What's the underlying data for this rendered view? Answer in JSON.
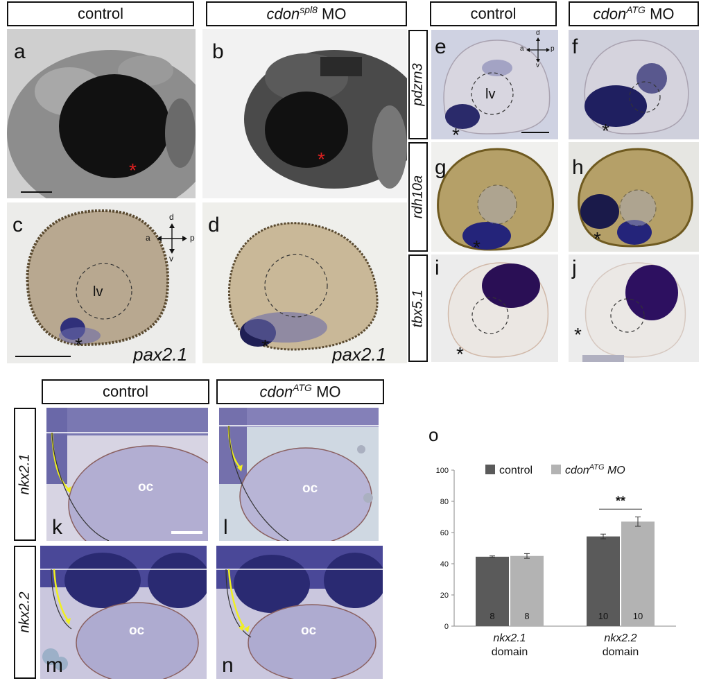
{
  "headers": {
    "top_control": "control",
    "top_mo_gene": "cdon",
    "top_mo_sup": "spl8",
    "top_mo_suffix": "MO",
    "right_control": "control",
    "right_mo_gene": "cdon",
    "right_mo_sup": "ATG",
    "right_mo_suffix": "MO",
    "bottom_control": "control",
    "bottom_mo_gene": "cdon",
    "bottom_mo_sup": "ATG",
    "bottom_mo_suffix": "MO"
  },
  "row_labels": {
    "pdzrn3": "pdzrn3",
    "rdh10a": "rdh10a",
    "tbx5_1": "tbx5.1",
    "nkx2_1": "nkx2.1",
    "nkx2_2": "nkx2.2"
  },
  "panel_letters": [
    "a",
    "b",
    "c",
    "d",
    "e",
    "f",
    "g",
    "h",
    "i",
    "j",
    "k",
    "l",
    "m",
    "n",
    "o"
  ],
  "in_panel_labels": {
    "gene_c": "pax2.1",
    "gene_d": "pax2.1",
    "lens_vesicle": "lv",
    "optic_chiasm": "oc",
    "asterisk": "*"
  },
  "compass": {
    "d": "d",
    "v": "v",
    "a": "a",
    "p": "p"
  },
  "chart_data": {
    "type": "bar",
    "categories": [
      "nkx2.1 domain",
      "nkx2.2 domain"
    ],
    "category_gene": [
      "nkx2.1",
      "nkx2.2"
    ],
    "category_suffix": [
      "domain",
      "domain"
    ],
    "series": [
      {
        "name": "control",
        "values": [
          44.5,
          57.5
        ],
        "errors": [
          0.5,
          1.5
        ],
        "n": [
          "8",
          "10"
        ],
        "color": "#5a5a5a"
      },
      {
        "name": "cdonATG MO",
        "values": [
          45,
          67
        ],
        "errors": [
          1.5,
          3
        ],
        "n": [
          "8",
          "10"
        ],
        "color": "#b3b3b3"
      }
    ],
    "ylim": [
      0,
      100
    ],
    "yticks": [
      "0",
      "20",
      "40",
      "60",
      "80",
      "100"
    ],
    "significance": "**",
    "legend_position": "top",
    "grid": false
  }
}
